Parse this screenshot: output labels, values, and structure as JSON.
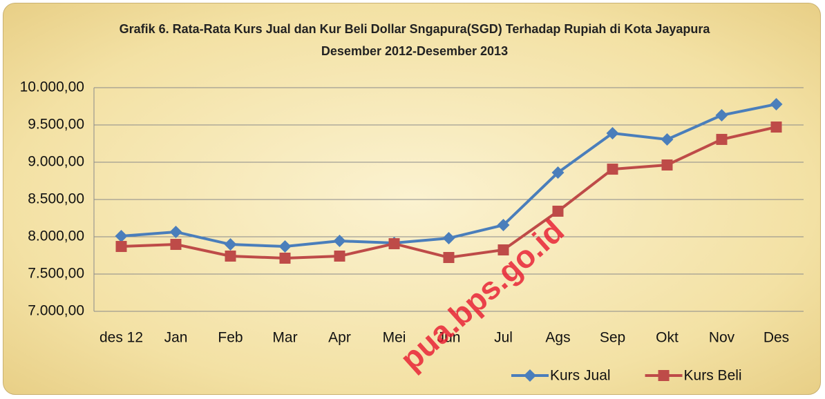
{
  "chart_data": {
    "type": "line",
    "title": "Grafik 6. Rata-Rata Kurs Jual dan Kur Beli Dollar Sngapura(SGD) Terhadap Rupiah di Kota Jayapura Desember 2012-Desember 2013",
    "categories": [
      "des 12",
      "Jan",
      "Feb",
      "Mar",
      "Apr",
      "Mei",
      "Jun",
      "Jul",
      "Ags",
      "Sep",
      "Okt",
      "Nov",
      "Des"
    ],
    "series": [
      {
        "name": "Kurs Jual",
        "color": "#4a7ebb",
        "marker": "diamond",
        "values": [
          8009,
          8065,
          7898,
          7870,
          7944,
          7917,
          7981,
          8157,
          8861,
          9389,
          9306,
          9630,
          9778
        ]
      },
      {
        "name": "Kurs Beli",
        "color": "#be4b48",
        "marker": "square",
        "values": [
          7870,
          7898,
          7741,
          7713,
          7741,
          7907,
          7722,
          7824,
          8343,
          8907,
          8963,
          9306,
          9472
        ]
      }
    ],
    "ylim": [
      7000,
      10000
    ],
    "yticks": [
      {
        "value": 7000,
        "label": "7.000,00"
      },
      {
        "value": 7500,
        "label": "7.500,00"
      },
      {
        "value": 8000,
        "label": "8.000,00"
      },
      {
        "value": 8500,
        "label": "8.500,00"
      },
      {
        "value": 9000,
        "label": "9.000,00"
      },
      {
        "value": 9500,
        "label": "9.500,00"
      },
      {
        "value": 10000,
        "label": "10.000,00"
      }
    ],
    "grid": true,
    "legend": "bottom-right",
    "watermark": "pua.bps.go.id"
  }
}
